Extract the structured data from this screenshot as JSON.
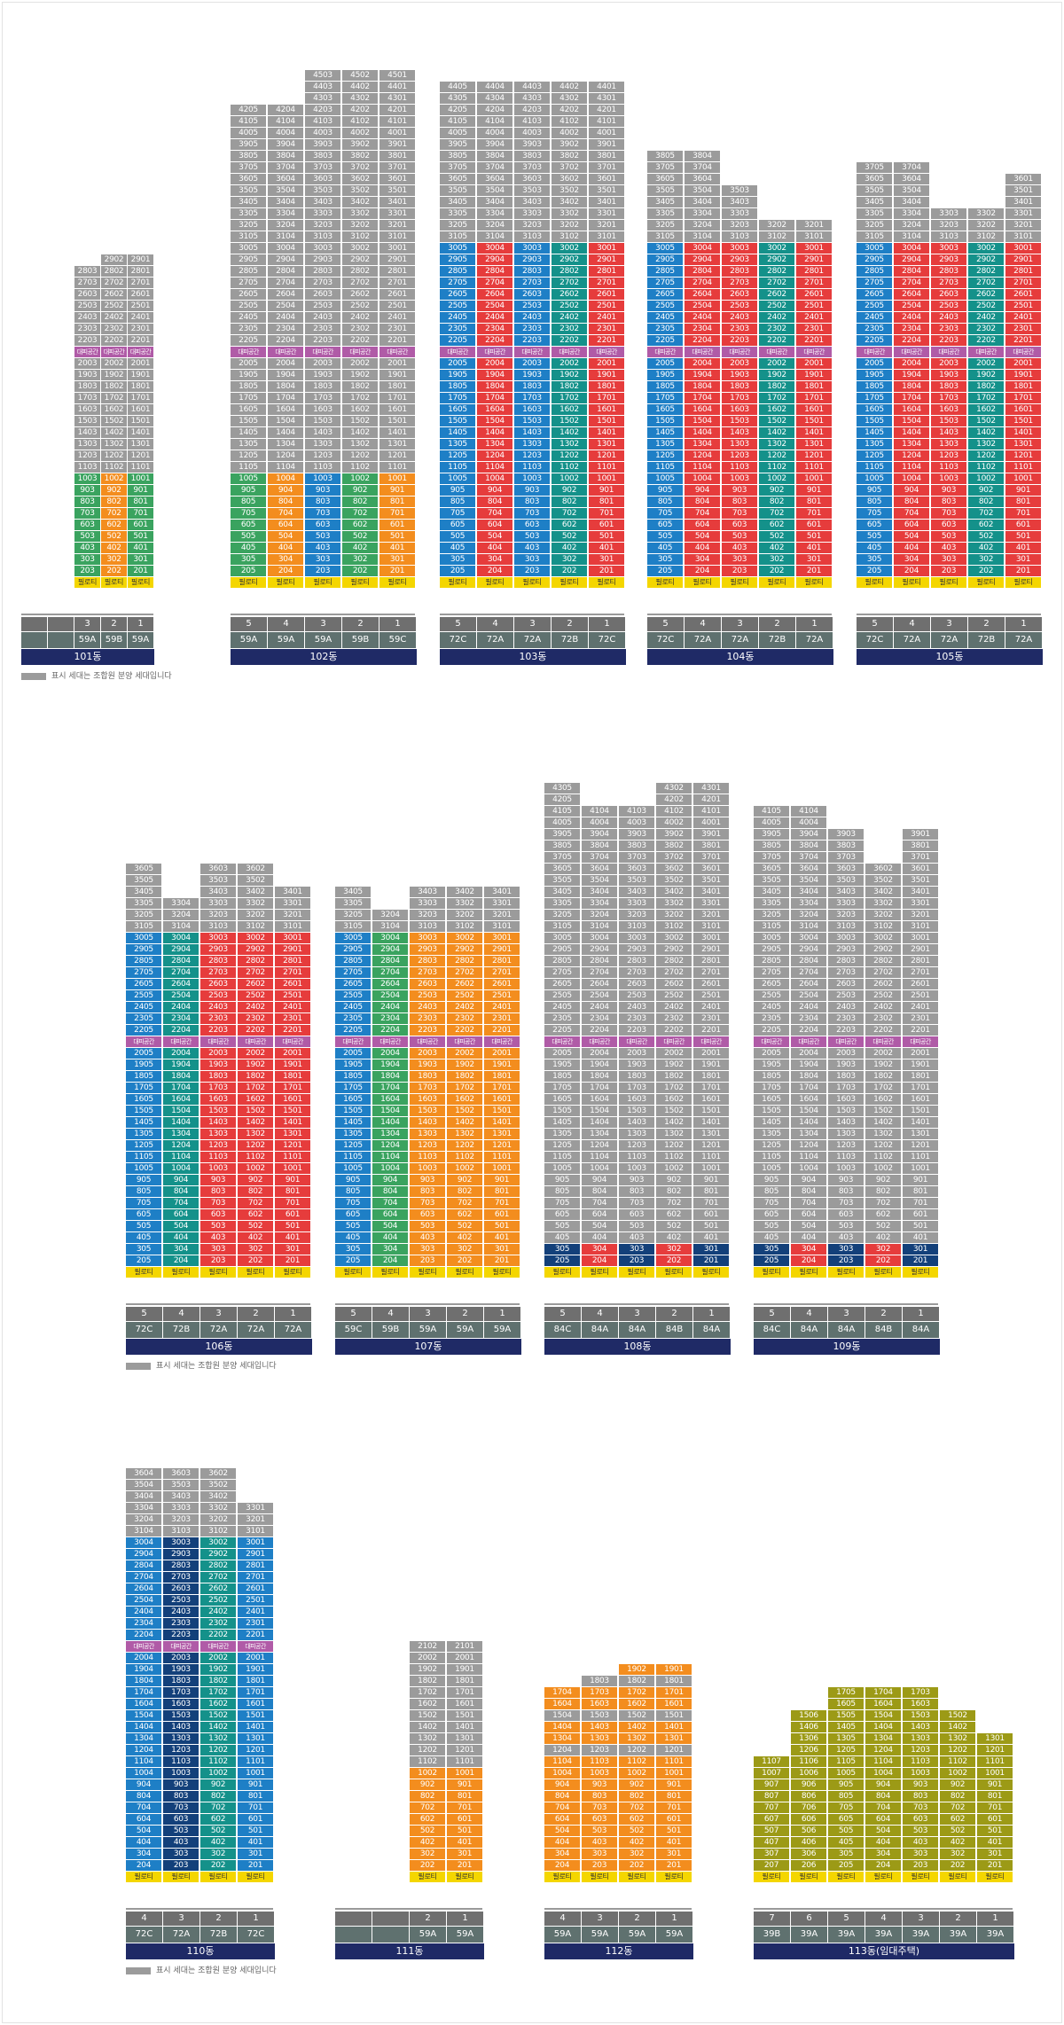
{
  "labels": {
    "piloti": "필로티",
    "shelter": "대피공간"
  },
  "legend_text": "표시 세대는 조합원 분양 세대입니다",
  "colors": {
    "gray": "#9b9b9b",
    "green": "#3aa35f",
    "orange": "#f38d1e",
    "blue": "#1e7fc6",
    "red": "#e63c3c",
    "teal": "#14918a",
    "navy": "#13407a",
    "olive": "#9c9a16",
    "maroon": "#8a1b4a",
    "lightgray": "#c4c4c4",
    "purple": "#b05ba7",
    "yellow": "#f4d600"
  },
  "buildings": [
    {
      "name": "101동",
      "lines": [
        "",
        "",
        "3",
        "2",
        "1"
      ],
      "types": [
        "",
        "",
        "59A",
        "59B",
        "59A"
      ],
      "floors": {
        "3": 28,
        "2": 29,
        "1": 29
      },
      "bands": [
        "green",
        "orange"
      ],
      "base": "gray",
      "member_lines": [
        "1"
      ]
    },
    {
      "name": "102동",
      "lines": [
        "5",
        "4",
        "3",
        "2",
        "1"
      ],
      "types": [
        "59A",
        "59A",
        "59A",
        "59B",
        "59C"
      ],
      "floors": {
        "5": 42,
        "4": 42,
        "3": 45,
        "2": 45,
        "1": 45
      },
      "bands": [
        "green",
        "orange",
        "blue"
      ],
      "base": "gray"
    },
    {
      "name": "103동",
      "lines": [
        "5",
        "4",
        "3",
        "2",
        "1"
      ],
      "types": [
        "72C",
        "72A",
        "72A",
        "72B",
        "72C"
      ],
      "floors": {
        "5": 44,
        "4": 44,
        "3": 44,
        "2": 44,
        "1": 44
      },
      "bands": [
        "blue",
        "red",
        "blue",
        "teal",
        "red"
      ],
      "base": "blue"
    },
    {
      "name": "104동",
      "lines": [
        "5",
        "4",
        "3",
        "2",
        "1"
      ],
      "types": [
        "72C",
        "72A",
        "72A",
        "72B",
        "72A"
      ],
      "floors": {
        "5": 38,
        "4": 38,
        "3": 35,
        "2": 32,
        "1": 32
      },
      "bands": [
        "blue",
        "red",
        "red",
        "teal",
        "red"
      ],
      "base": "blue"
    },
    {
      "name": "105동",
      "lines": [
        "5",
        "4",
        "3",
        "2",
        "1"
      ],
      "types": [
        "72C",
        "72A",
        "72A",
        "72B",
        "72A"
      ],
      "floors": {
        "5": 37,
        "4": 37,
        "3": 33,
        "2": 33,
        "1": 36
      },
      "bands": [
        "blue",
        "red",
        "red",
        "teal",
        "red"
      ],
      "base": "blue"
    },
    {
      "name": "106동",
      "lines": [
        "5",
        "4",
        "3",
        "2",
        "1"
      ],
      "types": [
        "72C",
        "72B",
        "72A",
        "72A",
        "72A"
      ],
      "floors": {
        "5": 36,
        "4": 33,
        "3": 36,
        "2": 36,
        "1": 34
      },
      "bands": [
        "blue",
        "teal",
        "red",
        "red",
        "red"
      ],
      "base": "blue"
    },
    {
      "name": "107동",
      "lines": [
        "5",
        "4",
        "3",
        "2",
        "1"
      ],
      "types": [
        "59C",
        "59B",
        "59A",
        "59A",
        "59A"
      ],
      "floors": {
        "5": 34,
        "4": 32,
        "3": 34,
        "2": 34,
        "1": 34
      },
      "bands": [
        "blue",
        "green",
        "orange",
        "orange",
        "orange"
      ],
      "base": "blue"
    },
    {
      "name": "108동",
      "lines": [
        "5",
        "4",
        "3",
        "2",
        "1"
      ],
      "types": [
        "84C",
        "84A",
        "84A",
        "84B",
        "84A"
      ],
      "floors": {
        "5": 43,
        "4": 41,
        "3": 41,
        "2": 43,
        "1": 43
      },
      "bands": [
        "gray"
      ],
      "base": "gray"
    },
    {
      "name": "109동",
      "lines": [
        "5",
        "4",
        "3",
        "2",
        "1"
      ],
      "types": [
        "84C",
        "84A",
        "84A",
        "84B",
        "84A"
      ],
      "floors": {
        "5": 41,
        "4": 41,
        "3": 39,
        "2": 36,
        "1": 39
      },
      "bands": [
        "gray"
      ],
      "base": "gray"
    },
    {
      "name": "110동",
      "lines": [
        "4",
        "3",
        "2",
        "1"
      ],
      "types": [
        "72C",
        "72A",
        "72B",
        "72C"
      ],
      "floors": {
        "4": 36,
        "3": 36,
        "2": 36,
        "1": 33
      },
      "bands": [
        "blue",
        "navy",
        "teal",
        "blue"
      ],
      "base": "blue"
    },
    {
      "name": "111동",
      "lines": [
        "",
        "",
        "2",
        "1"
      ],
      "types": [
        "",
        "",
        "59A",
        "59A"
      ],
      "floors": {
        "2": 21,
        "1": 21
      },
      "bands": [
        "orange",
        "gray",
        "orange"
      ],
      "base": "gray"
    },
    {
      "name": "112동",
      "lines": [
        "4",
        "3",
        "2",
        "1"
      ],
      "types": [
        "59A",
        "59A",
        "59A",
        "59A"
      ],
      "floors": {
        "4": 17,
        "3": 18,
        "2": 19,
        "1": 19
      },
      "bands": [
        "orange"
      ],
      "base": "orange"
    },
    {
      "name": "113동(임대주택)",
      "lines": [
        "7",
        "6",
        "5",
        "4",
        "3",
        "2",
        "1"
      ],
      "types": [
        "39B",
        "39A",
        "39A",
        "39A",
        "39A",
        "39A",
        "39A"
      ],
      "floors": {
        "7": 11,
        "6": 15,
        "5": 17,
        "4": 17,
        "3": 17,
        "2": 15,
        "1": 13
      },
      "bands": [
        "olive"
      ],
      "base": "olive"
    }
  ]
}
